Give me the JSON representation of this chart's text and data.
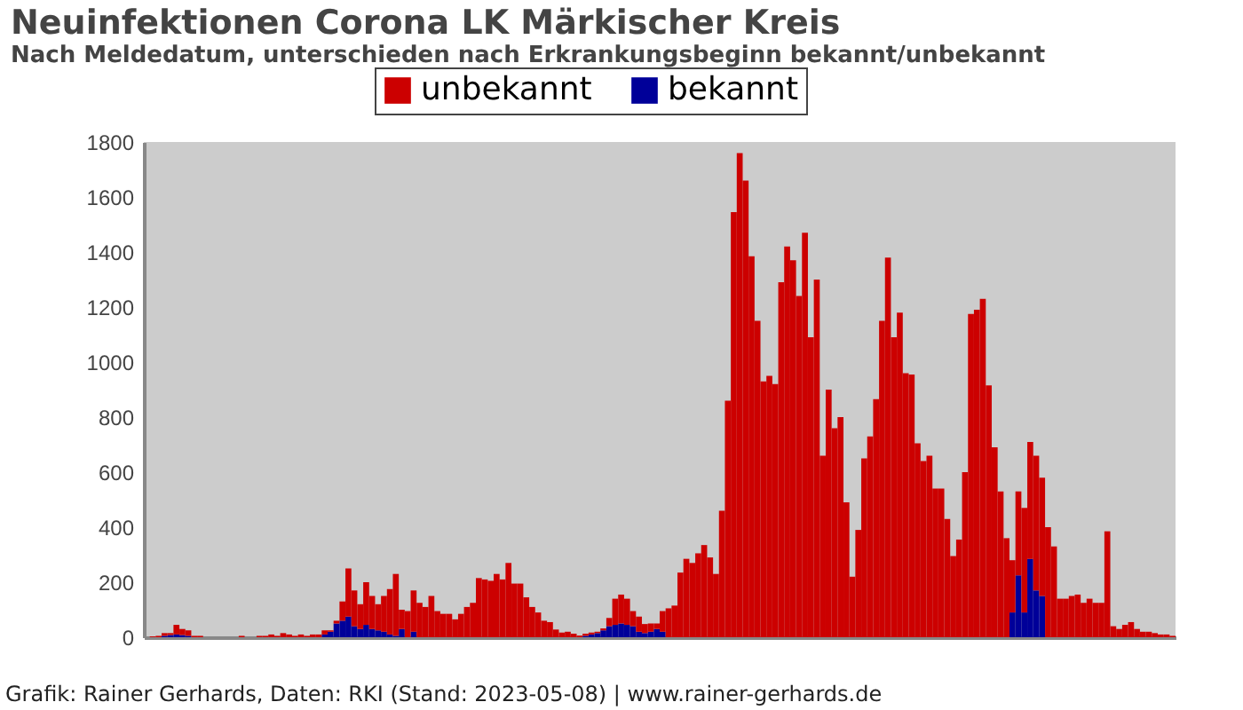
{
  "chart_data": {
    "type": "bar",
    "title": "Neuinfektionen Corona LK Märkischer Kreis",
    "subtitle": "Nach Meldedatum, unterschieden nach Erkrankungsbeginn bekannt/unbekannt",
    "annotations": [
      "Grafik: Rainer Gerhards, Daten: RKI (Stand: 2023-05-08) | www.rainer-gerhards.de"
    ],
    "categories": [
      null,
      null,
      null,
      null,
      null,
      null,
      null,
      null,
      null,
      null,
      null,
      null,
      null,
      null,
      null,
      null,
      null,
      null,
      null,
      null,
      null,
      null,
      null,
      null,
      null,
      null,
      null,
      null,
      null,
      null,
      null,
      null,
      null,
      null,
      null,
      null,
      null,
      null,
      null,
      null,
      null,
      null,
      null,
      null,
      null,
      null,
      null,
      null,
      null,
      null,
      null,
      null,
      null,
      null,
      null,
      null,
      null,
      null,
      null,
      null,
      null,
      null,
      null,
      null,
      null,
      null,
      null,
      null,
      null,
      null,
      null,
      null,
      null,
      null,
      null,
      null,
      null,
      null,
      null,
      null,
      null,
      null,
      null,
      null,
      null,
      null,
      null,
      null,
      null,
      null,
      null,
      null,
      null,
      null,
      null,
      null,
      null,
      null,
      null,
      null,
      null,
      null,
      null,
      null,
      null,
      null,
      null,
      null,
      null,
      null,
      null,
      null,
      null,
      null,
      null,
      null,
      null,
      null,
      null,
      null,
      null,
      null,
      null,
      null,
      null,
      null,
      null,
      null,
      null,
      null,
      null,
      null,
      null,
      null,
      null,
      null,
      null,
      null,
      null,
      null,
      null,
      null,
      null,
      null,
      null,
      null,
      null,
      null,
      null,
      null,
      null,
      null,
      null,
      null,
      null,
      null,
      null,
      null,
      null,
      null,
      null,
      null,
      null,
      null,
      null,
      null,
      null,
      null,
      null,
      null,
      null,
      null,
      null,
      null
    ],
    "stacked": true,
    "ylim": [
      0,
      1800
    ],
    "yticks": [
      0,
      200,
      400,
      600,
      800,
      1000,
      1200,
      1400,
      1600,
      1800
    ],
    "legend": "top",
    "tick_labels": "y",
    "series": [
      {
        "name": "bekannt",
        "color": "#000099",
        "values": [
          0,
          0,
          0,
          5,
          8,
          10,
          8,
          5,
          0,
          0,
          0,
          0,
          0,
          0,
          0,
          0,
          0,
          0,
          0,
          0,
          0,
          0,
          0,
          0,
          0,
          0,
          0,
          0,
          0,
          0,
          10,
          20,
          50,
          60,
          75,
          40,
          30,
          45,
          30,
          25,
          20,
          10,
          5,
          30,
          0,
          20,
          0,
          0,
          0,
          0,
          0,
          0,
          0,
          0,
          0,
          0,
          0,
          0,
          0,
          0,
          0,
          0,
          0,
          0,
          0,
          0,
          0,
          0,
          0,
          0,
          0,
          0,
          0,
          0,
          5,
          10,
          15,
          25,
          40,
          45,
          50,
          45,
          40,
          20,
          15,
          20,
          30,
          20,
          0,
          0,
          0,
          0,
          0,
          0,
          0,
          0,
          0,
          0,
          0,
          0,
          0,
          0,
          0,
          0,
          0,
          0,
          0,
          0,
          0,
          0,
          0,
          0,
          0,
          0,
          0,
          0,
          0,
          0,
          0,
          0,
          0,
          0,
          0,
          0,
          0,
          0,
          0,
          0,
          0,
          0,
          0,
          0,
          0,
          0,
          0,
          0,
          0,
          0,
          0,
          0,
          0,
          0,
          0,
          0,
          0,
          0,
          90,
          225,
          90,
          285,
          170,
          150,
          0,
          0,
          0,
          0,
          0,
          0,
          0,
          0,
          0,
          0,
          0,
          0,
          0,
          0,
          0,
          0,
          0,
          0,
          0,
          0,
          0,
          0
        ]
      },
      {
        "name": "unbekannt",
        "color": "#cc0000",
        "values": [
          0,
          3,
          5,
          10,
          7,
          35,
          22,
          20,
          5,
          5,
          0,
          0,
          0,
          0,
          0,
          0,
          5,
          0,
          0,
          5,
          5,
          10,
          5,
          15,
          10,
          5,
          10,
          5,
          10,
          10,
          15,
          5,
          10,
          70,
          175,
          130,
          90,
          155,
          120,
          95,
          130,
          165,
          225,
          70,
          95,
          150,
          125,
          110,
          150,
          95,
          85,
          85,
          65,
          85,
          110,
          125,
          215,
          210,
          205,
          230,
          210,
          270,
          195,
          195,
          145,
          110,
          90,
          60,
          55,
          28,
          17,
          20,
          13,
          6,
          8,
          7,
          5,
          7,
          30,
          95,
          105,
          95,
          55,
          55,
          33,
          30,
          20,
          75,
          105,
          115,
          235,
          285,
          270,
          305,
          335,
          290,
          230,
          460,
          860,
          1545,
          1760,
          1660,
          1385,
          1150,
          930,
          950,
          920,
          1290,
          1420,
          1370,
          1240,
          1470,
          1090,
          1300,
          660,
          900,
          760,
          800,
          490,
          220,
          390,
          650,
          730,
          865,
          1150,
          1380,
          1090,
          1180,
          960,
          955,
          705,
          640,
          660,
          540,
          540,
          430,
          295,
          355,
          600,
          1175,
          1190,
          1230,
          915,
          690,
          530,
          360,
          190,
          305,
          380,
          425,
          490,
          430,
          400,
          330,
          140,
          140,
          150,
          155,
          125,
          140,
          125,
          125,
          385,
          40,
          30,
          45,
          55,
          30,
          20,
          20,
          15,
          10,
          10,
          5
        ]
      }
    ]
  }
}
